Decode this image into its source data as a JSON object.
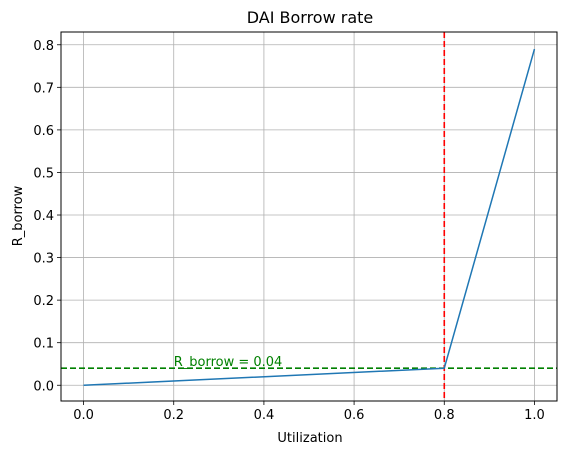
{
  "chart_data": {
    "type": "line",
    "title": "DAI Borrow rate",
    "xlabel": "Utilization",
    "ylabel": "R_borrow",
    "xlim": [
      -0.05,
      1.05
    ],
    "ylim": [
      -0.037,
      0.83
    ],
    "xticks": [
      0.0,
      0.2,
      0.4,
      0.6,
      0.8,
      1.0
    ],
    "xtick_labels": [
      "0.0",
      "0.2",
      "0.4",
      "0.6",
      "0.8",
      "1.0"
    ],
    "yticks": [
      0.0,
      0.1,
      0.2,
      0.3,
      0.4,
      0.5,
      0.6,
      0.7,
      0.8
    ],
    "ytick_labels": [
      "0.0",
      "0.1",
      "0.2",
      "0.3",
      "0.4",
      "0.5",
      "0.6",
      "0.7",
      "0.8"
    ],
    "grid": true,
    "series": [
      {
        "x": [
          0.0,
          0.8,
          1.0
        ],
        "y": [
          0.0,
          0.04,
          0.79
        ],
        "color": "#1f77b4"
      }
    ],
    "reference_lines": [
      {
        "orientation": "vertical",
        "x": 0.8,
        "color": "#ff0000",
        "style": "dashed"
      },
      {
        "orientation": "horizontal",
        "y": 0.04,
        "color": "#008000",
        "style": "dashed"
      }
    ],
    "annotations": [
      {
        "text": "R_borrow = 0.04",
        "x": 0.2,
        "y": 0.045,
        "color": "#008000"
      }
    ]
  }
}
